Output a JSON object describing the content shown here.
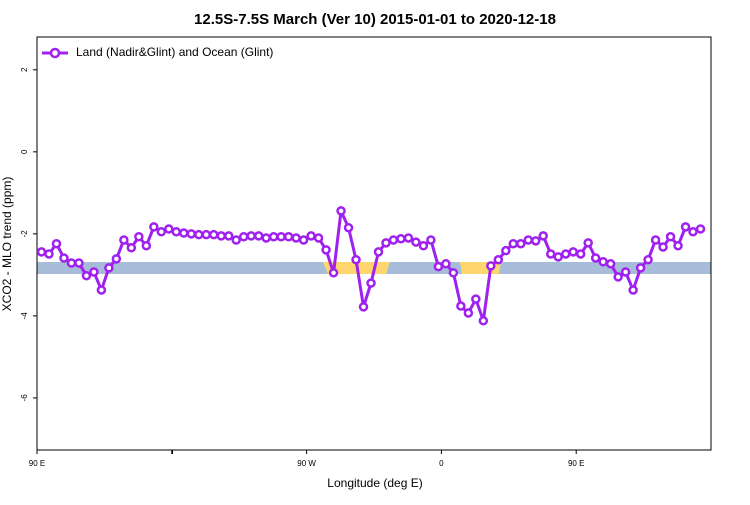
{
  "chart_data": {
    "type": "line",
    "title": "12.5S-7.5S March (Ver 10)   2015-01-01 to 2020-12-18",
    "x_label": "Longitude (deg E)",
    "y_label": "XCO2 - MLO trend (ppm)",
    "x": [
      93,
      98,
      103,
      108,
      113,
      118,
      123,
      128,
      133,
      138,
      143,
      148,
      153,
      158,
      163,
      168,
      173,
      178,
      183,
      188,
      193,
      198,
      203,
      208,
      213,
      218,
      223,
      228,
      233,
      238,
      243,
      248,
      253,
      258,
      263,
      268,
      273,
      278,
      283,
      288,
      293,
      298,
      303,
      308,
      313,
      318,
      323,
      328,
      333,
      338,
      343,
      348,
      353,
      358,
      363,
      368,
      373,
      378,
      383,
      388,
      393,
      398,
      403,
      408,
      413,
      418,
      423,
      428,
      433,
      438,
      443,
      448,
      453,
      458,
      463,
      468,
      473,
      478,
      483,
      488,
      493,
      498,
      503,
      508,
      513,
      518,
      523,
      528,
      533
    ],
    "series": [
      {
        "name": "Land (Nadir&Glint) and Ocean (Glint)",
        "color": "#a020f0",
        "values": [
          -2.44,
          -2.49,
          -2.24,
          -2.59,
          -2.71,
          -2.71,
          -3.02,
          -2.93,
          -3.37,
          -2.83,
          -2.61,
          -2.15,
          -2.34,
          -2.07,
          -2.29,
          -1.83,
          -1.95,
          -1.88,
          -1.95,
          -1.98,
          -2.0,
          -2.02,
          -2.02,
          -2.02,
          -2.05,
          -2.05,
          -2.15,
          -2.07,
          -2.05,
          -2.05,
          -2.1,
          -2.07,
          -2.07,
          -2.07,
          -2.1,
          -2.15,
          -2.05,
          -2.1,
          -2.39,
          -2.95,
          -1.44,
          -1.85,
          -2.63,
          -3.78,
          -3.2,
          -2.44,
          -2.22,
          -2.15,
          -2.12,
          -2.1,
          -2.2,
          -2.29,
          -2.15,
          -2.8,
          -2.73,
          -2.95,
          -3.76,
          -3.93,
          -3.59,
          -4.12,
          -2.78,
          -2.63,
          -2.41,
          -2.24,
          -2.24,
          -2.15,
          -2.17,
          -2.05,
          -2.49,
          -2.56,
          -2.49,
          -2.44,
          -2.49,
          -2.22,
          -2.59,
          -2.68,
          -2.73,
          -3.05,
          -2.93,
          -3.37,
          -2.83,
          -2.63,
          -2.15,
          -2.32,
          -2.07,
          -2.29,
          -1.83,
          -1.95,
          -1.88
        ]
      }
    ],
    "xlim": [
      90,
      540
    ],
    "xticks": [
      {
        "value": 90,
        "label": "90 E"
      },
      180,
      {
        "value": 270,
        "label": "90 W"
      },
      {
        "value": 360,
        "label": "0"
      },
      {
        "value": 450,
        "label": "90 E"
      },
      180.5
    ],
    "ylim": [
      -7.27,
      2.8
    ],
    "yticks": [
      2,
      0,
      -2,
      -4,
      -6
    ],
    "legend": "top-left"
  }
}
